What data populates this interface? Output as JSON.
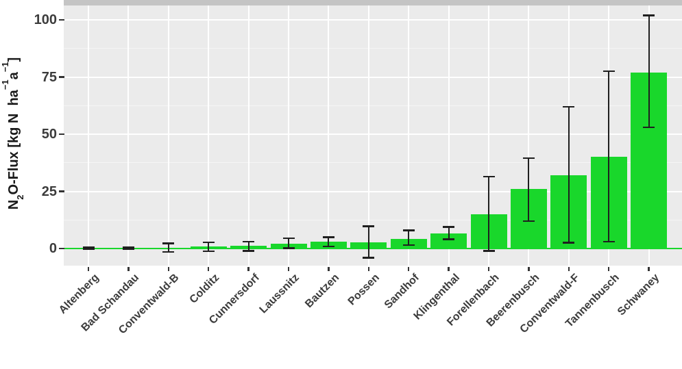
{
  "chart_data": {
    "type": "bar",
    "title": "",
    "ylabel_parts": {
      "n": "N",
      "sub2": "2",
      "mid": "O-Flux [kg N  ha",
      "sup1": "−1",
      "a": "a",
      "sup2": "−1",
      "close": "]"
    },
    "categories": [
      "Altenberg",
      "Bad Schandau",
      "Conventwald-B",
      "Colditz",
      "Cunnersdorf",
      "Laussnitz",
      "Bautzen",
      "Possen",
      "Sandhof",
      "Klingenthal",
      "Forellenbach",
      "Beerenbusch",
      "Conventwald-F",
      "Tannenbusch",
      "Schwaney"
    ],
    "values": [
      0.1,
      0.15,
      0.4,
      0.9,
      1.2,
      2.0,
      3.0,
      2.6,
      4.3,
      6.7,
      15.0,
      26.0,
      32.0,
      40.0,
      77.0
    ],
    "error_low": [
      -0.3,
      -0.2,
      -1.5,
      -1.2,
      -1.0,
      0.2,
      0.9,
      -4.0,
      1.5,
      4.0,
      -1.0,
      12.0,
      2.5,
      3.0,
      53.0
    ],
    "error_high": [
      0.5,
      0.5,
      2.3,
      2.7,
      3.0,
      4.5,
      5.0,
      9.7,
      8.0,
      9.5,
      31.5,
      39.5,
      62.0,
      77.5,
      102.0
    ],
    "yticks": [
      "0",
      "25",
      "50",
      "75",
      "100"
    ],
    "ytick_values": [
      0,
      25,
      50,
      75,
      100
    ],
    "yminor_values": [
      12.5,
      37.5,
      62.5,
      87.5
    ],
    "ylim": [
      -7.5,
      106.3
    ],
    "grid": "on",
    "legend": "none",
    "colors": {
      "bar": "#19d72b",
      "errorbar": "#1f1f1f",
      "panel_bg": "#ebebeb",
      "grid_major": "#ffffff",
      "grid_minor": "#f5f5f5",
      "strip": "#c4c4c4",
      "axis_text": "#3c3c3c",
      "tick_mark": "#333333",
      "zero_line": "#19d72b"
    }
  }
}
